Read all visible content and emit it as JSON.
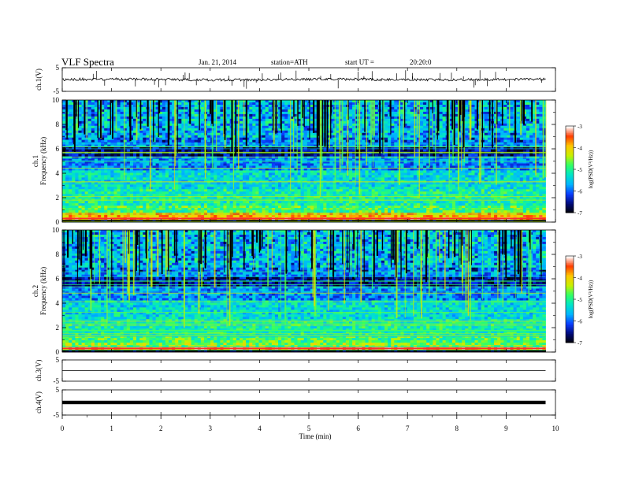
{
  "header": {
    "title": "VLF Spectra",
    "date": "Jan. 21, 2014",
    "station": "station=ATH",
    "start_ut": "start UT =",
    "start_time": "20:20:0"
  },
  "chart_data": [
    {
      "type": "line",
      "name": "ch1-waveform",
      "ylabel": "ch.1(V)",
      "ylim": [
        -5,
        5
      ],
      "yticks": [
        "5",
        "-5"
      ],
      "baseline": 0,
      "xlim": [
        0,
        10
      ],
      "data_end_min": 9.8
    },
    {
      "type": "heatmap",
      "name": "ch1-spectrogram",
      "ylabel_line1": "ch.1",
      "ylabel_line2": "Frequency (kHz)",
      "ylim": [
        0,
        10
      ],
      "yticks": [
        "0",
        "2",
        "4",
        "6",
        "8",
        "10"
      ],
      "colorbar": {
        "label": "log(PSD(V²/Hz))",
        "range": [
          -7,
          -3
        ],
        "ticks": [
          "-3",
          "-4",
          "-5",
          "-6",
          "-7"
        ]
      }
    },
    {
      "type": "heatmap",
      "name": "ch2-spectrogram",
      "ylabel_line1": "ch.2",
      "ylabel_line2": "Frequency (kHz)",
      "ylim": [
        0,
        10
      ],
      "yticks": [
        "0",
        "2",
        "4",
        "6",
        "8",
        "10"
      ],
      "colorbar": {
        "label": "log(PSD(V²/Hz))",
        "range": [
          -7,
          -3
        ],
        "ticks": [
          "-3",
          "-4",
          "-5",
          "-6",
          "-7"
        ]
      }
    },
    {
      "type": "line",
      "name": "ch3-waveform",
      "ylabel": "ch.3(V)",
      "ylim": [
        -5,
        5
      ],
      "yticks": [
        "5",
        "-5"
      ],
      "baseline": 0
    },
    {
      "type": "line",
      "name": "ch4-waveform",
      "ylabel": "ch.4(V)",
      "ylim": [
        -5,
        5
      ],
      "yticks": [
        "5",
        "-5"
      ],
      "baseline": 0
    }
  ],
  "xaxis": {
    "label": "Time (min)",
    "range": [
      0,
      10
    ],
    "ticks": [
      "0",
      "1",
      "2",
      "3",
      "4",
      "5",
      "6",
      "7",
      "8",
      "9",
      "10"
    ]
  },
  "colors": {
    "colormap": [
      "#000000",
      "#000a7a",
      "#0a3cff",
      "#00b4ff",
      "#00e6c8",
      "#32ff64",
      "#c8f000",
      "#ffc800",
      "#ff3c00",
      "#ffffff"
    ]
  }
}
